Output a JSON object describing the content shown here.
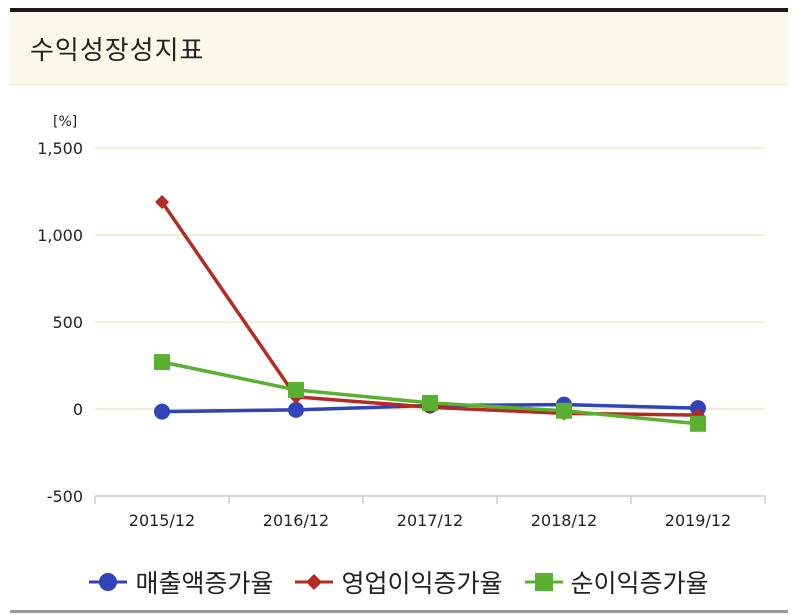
{
  "widget": {
    "title": "수익성장성지표"
  },
  "chart_data": {
    "type": "line",
    "ylabel": "[%]",
    "ylim": [
      -500,
      1500
    ],
    "yticks": [
      -500,
      0,
      500,
      1000,
      1500
    ],
    "ytick_labels": [
      "-500",
      "0",
      "500",
      "1,000",
      "1,500"
    ],
    "categories": [
      "2015/12",
      "2016/12",
      "2017/12",
      "2018/12",
      "2019/12"
    ],
    "grid": true,
    "legend_position": "bottom",
    "series": [
      {
        "name": "매출액증가율",
        "color": "#3143b8",
        "marker": "circle",
        "values": [
          -15,
          -5,
          20,
          25,
          5
        ]
      },
      {
        "name": "영업이익증가율",
        "color": "#b52a22",
        "marker": "diamond",
        "values": [
          1190,
          70,
          10,
          -25,
          -35
        ]
      },
      {
        "name": "순이익증가율",
        "color": "#5ab030",
        "marker": "square",
        "values": [
          270,
          110,
          35,
          -10,
          -85
        ]
      }
    ]
  }
}
